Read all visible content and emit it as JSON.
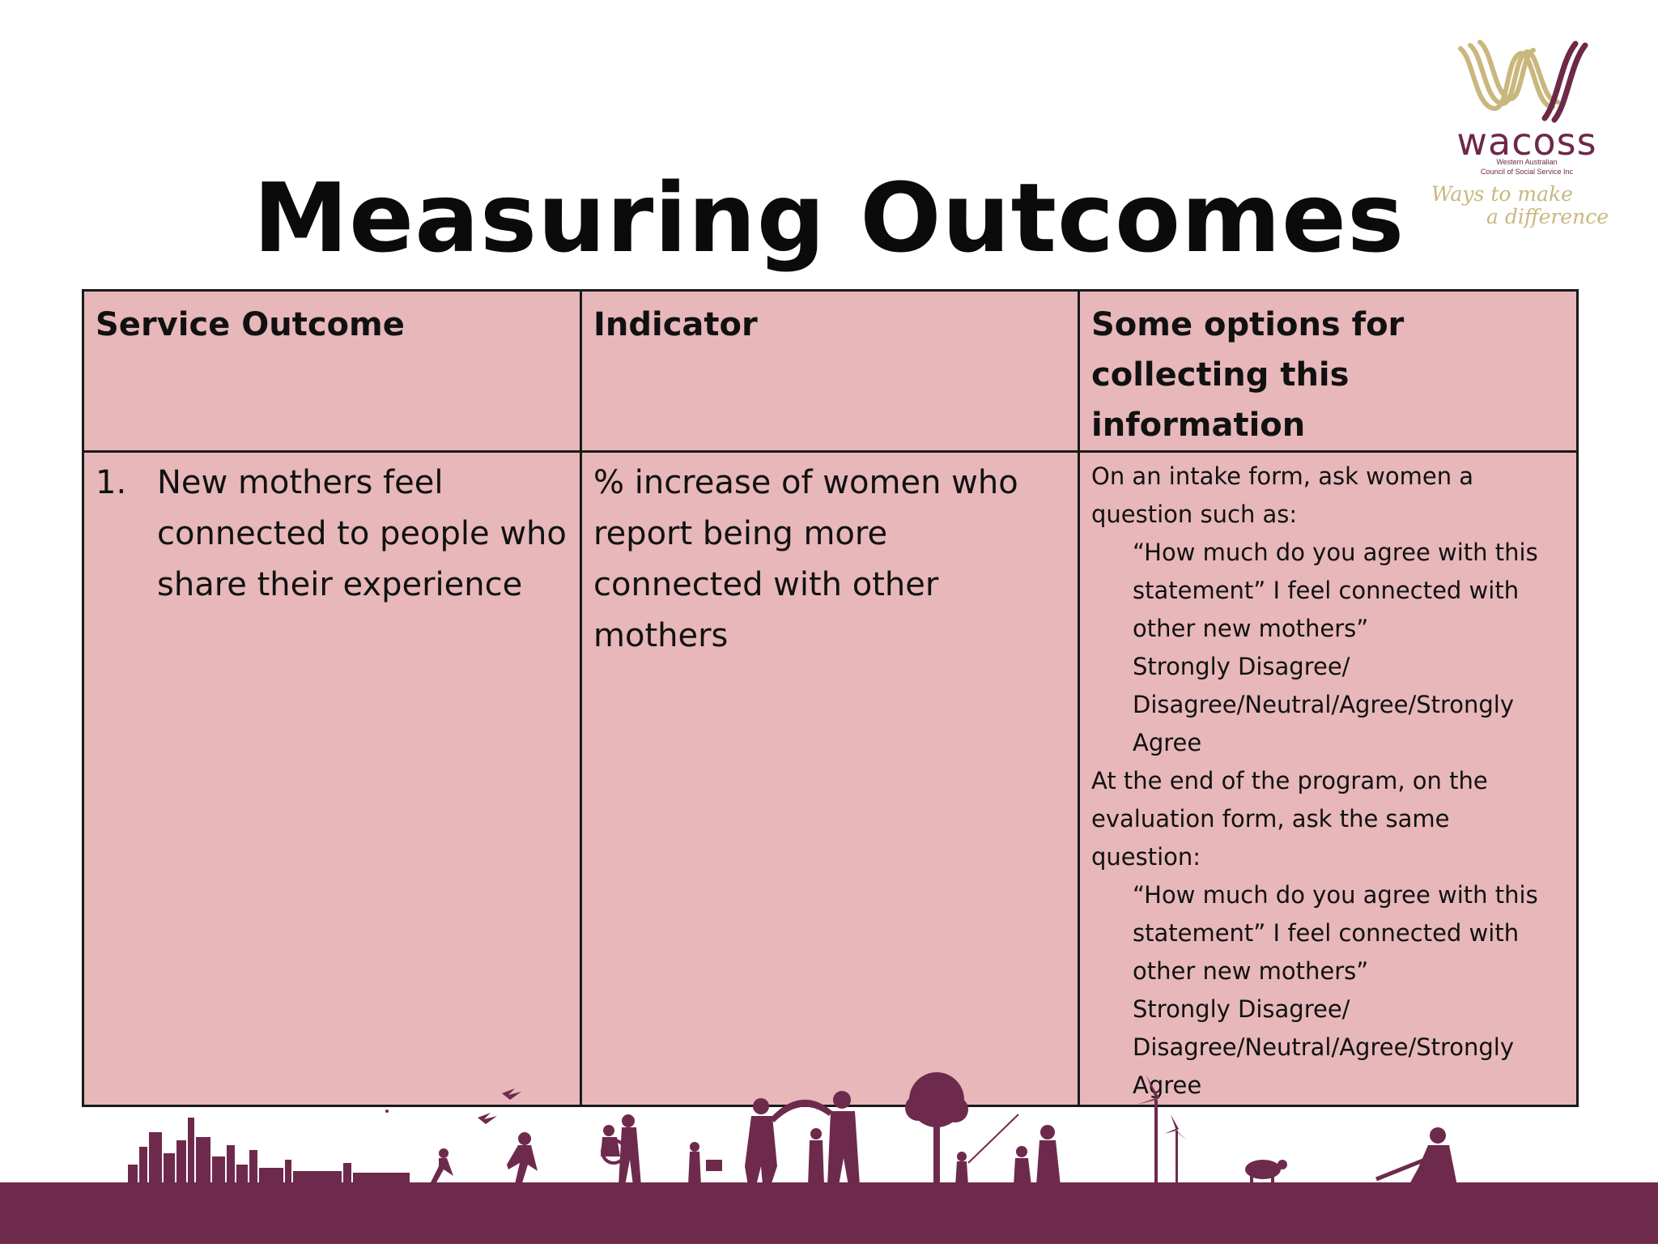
{
  "slide": {
    "title": "Measuring Outcomes"
  },
  "logo": {
    "name": "wacoss",
    "subtitle_line1": "Western Australian",
    "subtitle_line2": "Council of Social Service Inc",
    "tagline_line1": "Ways to make",
    "tagline_line2": "a difference",
    "colors": {
      "plum": "#6e2848",
      "olive": "#c9b77e"
    }
  },
  "table": {
    "headers": [
      "Service Outcome",
      "Indicator",
      "Some options for collecting this information"
    ],
    "rows": [
      {
        "outcome_number": "1.",
        "outcome_text": "New mothers feel connected to people who share their experience",
        "indicator": "% increase of women who report being more connected with other mothers",
        "collection": {
          "intake_intro": "On an intake form, ask women a question such as:",
          "intake_question": "“How much do you agree with this statement” I feel connected with other new mothers”",
          "intake_scale": "Strongly Disagree/ Disagree/Neutral/Agree/Strongly Agree",
          "evaluation_intro": "At the end of the program, on the evaluation form, ask the same question:",
          "evaluation_question": "“How much do you agree with this statement” I feel connected with other new mothers”",
          "evaluation_scale": "Strongly Disagree/ Disagree/Neutral/Agree/Strongly Agree"
        }
      }
    ],
    "colors": {
      "cell_background": "#e7b7ba",
      "border": "#1a1a1a"
    }
  },
  "footer": {
    "silhouette_color": "#6e2a4c",
    "ground_color": "#6e2a4c"
  }
}
